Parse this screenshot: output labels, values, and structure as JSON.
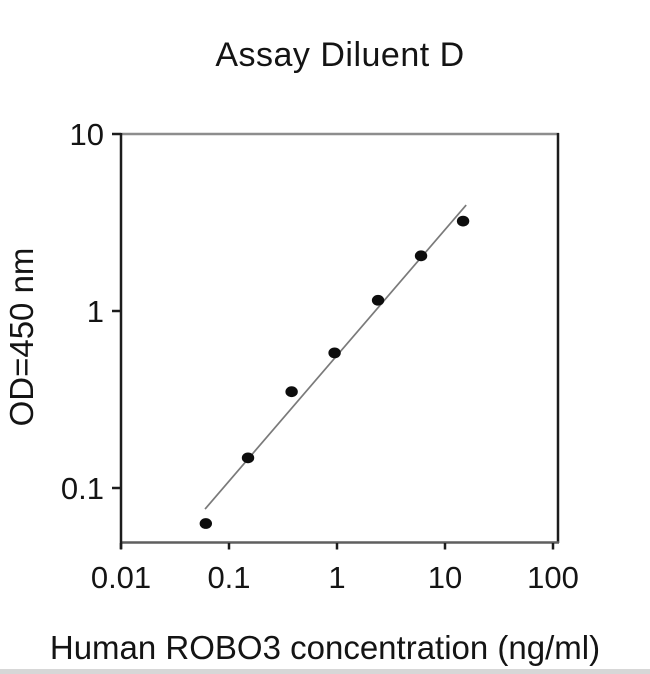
{
  "chart_data": {
    "type": "scatter",
    "title": "Assay Diluent D",
    "xlabel": "Human ROBO3 concentration (ng/ml)",
    "ylabel": "OD=450 nm",
    "x_scale": "log",
    "y_scale": "log",
    "x_range": [
      0.01,
      100
    ],
    "y_range": [
      0.049,
      10
    ],
    "x_tick_labels": [
      "0.01",
      "0.1",
      "1",
      "10",
      "100"
    ],
    "y_tick_labels": [
      "10",
      "1",
      "0.1"
    ],
    "grid": false,
    "legend": false,
    "points": [
      {
        "x": 0.061,
        "y": 0.063
      },
      {
        "x": 0.15,
        "y": 0.148
      },
      {
        "x": 0.38,
        "y": 0.35
      },
      {
        "x": 0.95,
        "y": 0.58
      },
      {
        "x": 2.4,
        "y": 1.15
      },
      {
        "x": 6.0,
        "y": 2.05
      },
      {
        "x": 14.7,
        "y": 3.22
      }
    ],
    "fit_line": {
      "x1": 0.06,
      "y1": 0.076,
      "x2": 15.7,
      "y2": 3.97
    },
    "colors": {
      "text": "#141414",
      "axis": "#1c1c1c",
      "top_border": "#8d8d8d",
      "bottom_axis": "#5f5f5f",
      "tick": "#1c1c1c",
      "marker": "#0d0d0d",
      "fit_line": "#7a7a7a"
    }
  }
}
